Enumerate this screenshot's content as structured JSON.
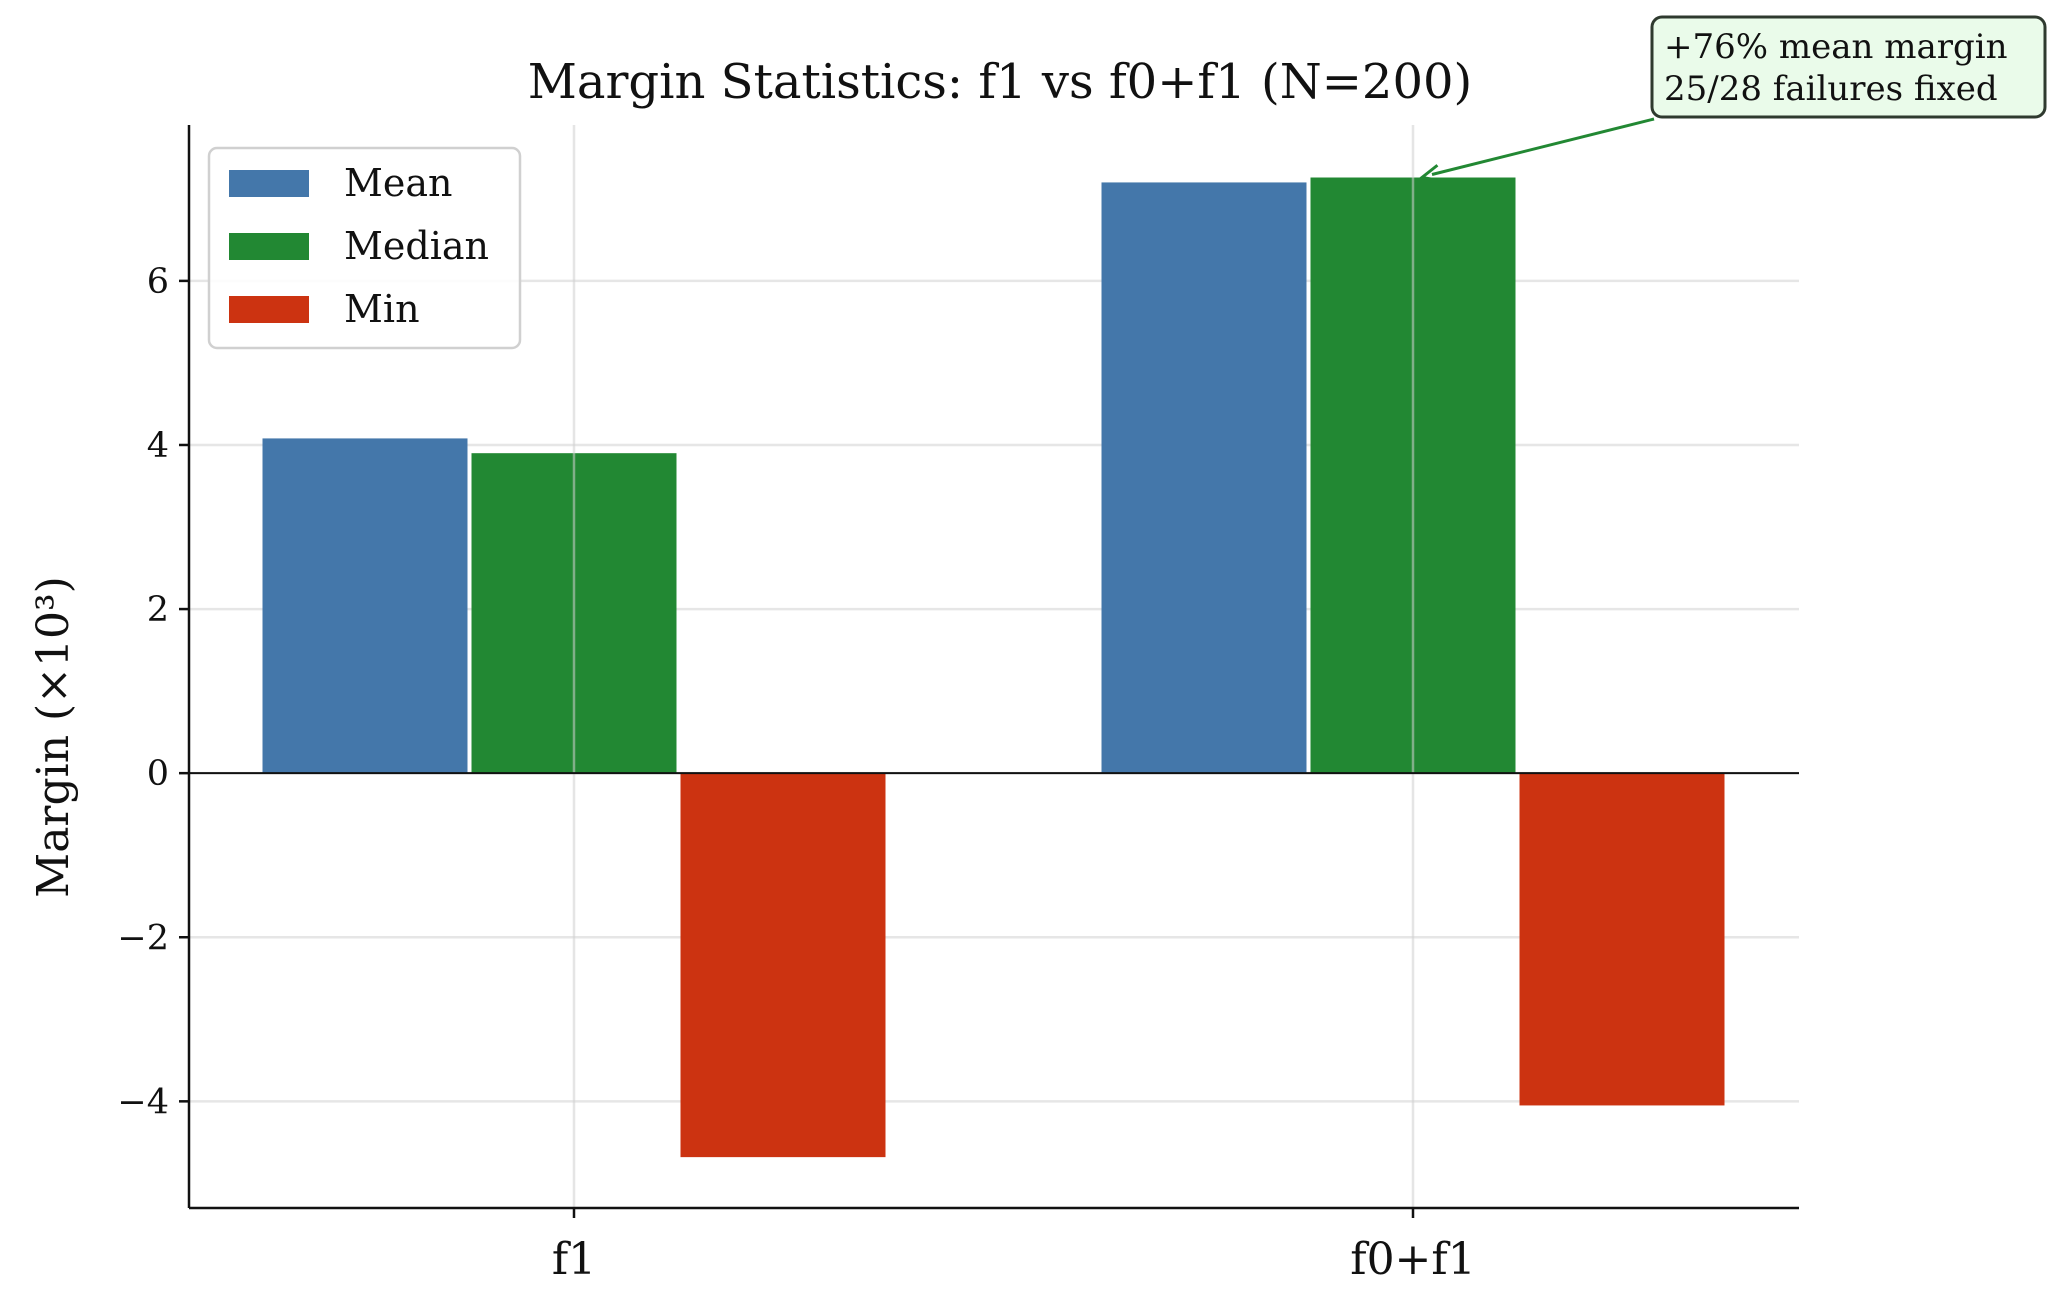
{
  "chart_data": {
    "type": "bar",
    "title": "Margin Statistics: f1 vs f0+f1 (N=200)",
    "xlabel": "",
    "ylabel": "Margin (×10³)",
    "categories": [
      "f1",
      "f0+f1"
    ],
    "series": [
      {
        "name": "Mean",
        "color": "#4477AA",
        "values": [
          4.08,
          7.2
        ]
      },
      {
        "name": "Median",
        "color": "#228833",
        "values": [
          3.9,
          7.26
        ]
      },
      {
        "name": "Min",
        "color": "#CC3311",
        "values": [
          -4.68,
          -4.05
        ]
      }
    ],
    "ylim": [
      -5.3,
      7.9
    ],
    "yticks": [
      -4,
      -2,
      0,
      2,
      4,
      6
    ],
    "ytick_labels": [
      "−4",
      "−2",
      "0",
      "2",
      "4",
      "6"
    ],
    "grid": true,
    "legend_position": "upper-left",
    "annotation": {
      "lines": [
        "+76% mean margin",
        "25/28 failures fixed"
      ],
      "points_to": {
        "category": "f0+f1",
        "series": "Median"
      },
      "color": "#228833",
      "background": "#EAFBEA"
    }
  }
}
